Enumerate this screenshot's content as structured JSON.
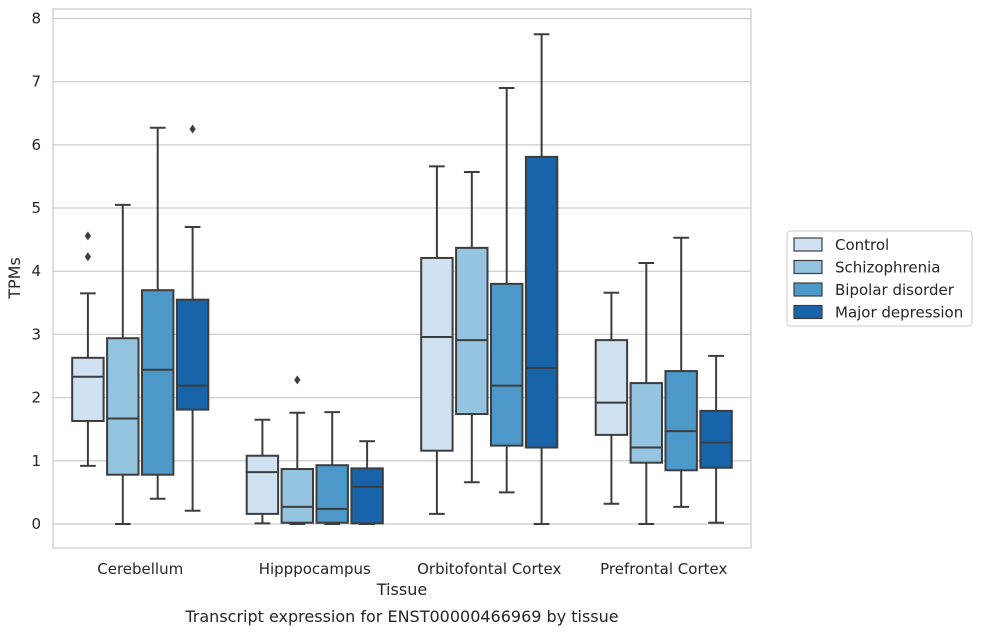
{
  "chart_data": {
    "type": "box",
    "xlabel": "Tissue",
    "ylabel": "TPMs",
    "caption": "Transcript expression for ENST00000466969 by tissue",
    "ylim": [
      -0.38,
      8.15
    ],
    "yticks": [
      0,
      1,
      2,
      3,
      4,
      5,
      6,
      7,
      8
    ],
    "grid": "horizontal",
    "legend_position": "right",
    "categories": [
      "Cerebellum",
      "Hipppocampus",
      "Orbitofontal Cortex",
      "Prefrontal Cortex"
    ],
    "series": [
      {
        "name": "Control",
        "color": "#d0e1f2",
        "boxes": [
          {
            "whislo": 0.92,
            "q1": 1.63,
            "med": 2.33,
            "q3": 2.63,
            "whishi": 3.65,
            "fliers": [
              4.23,
              4.56
            ]
          },
          {
            "whislo": 0.01,
            "q1": 0.16,
            "med": 0.82,
            "q3": 1.08,
            "whishi": 1.65,
            "fliers": []
          },
          {
            "whislo": 0.16,
            "q1": 1.16,
            "med": 2.96,
            "q3": 4.21,
            "whishi": 5.66,
            "fliers": []
          },
          {
            "whislo": 0.32,
            "q1": 1.41,
            "med": 1.92,
            "q3": 2.91,
            "whishi": 3.66,
            "fliers": []
          }
        ]
      },
      {
        "name": "Schizophrenia",
        "color": "#94c4df",
        "boxes": [
          {
            "whislo": 0.0,
            "q1": 0.78,
            "med": 1.67,
            "q3": 2.94,
            "whishi": 5.05,
            "fliers": []
          },
          {
            "whislo": 0.0,
            "q1": 0.02,
            "med": 0.27,
            "q3": 0.87,
            "whishi": 1.76,
            "fliers": [
              2.28
            ]
          },
          {
            "whislo": 0.66,
            "q1": 1.74,
            "med": 2.91,
            "q3": 4.37,
            "whishi": 5.57,
            "fliers": []
          },
          {
            "whislo": 0.0,
            "q1": 0.97,
            "med": 1.21,
            "q3": 2.23,
            "whishi": 4.13,
            "fliers": []
          }
        ]
      },
      {
        "name": "Bipolar disorder",
        "color": "#4b98c9",
        "boxes": [
          {
            "whislo": 0.4,
            "q1": 0.78,
            "med": 2.44,
            "q3": 3.7,
            "whishi": 6.27,
            "fliers": []
          },
          {
            "whislo": 0.0,
            "q1": 0.02,
            "med": 0.24,
            "q3": 0.93,
            "whishi": 1.77,
            "fliers": []
          },
          {
            "whislo": 0.5,
            "q1": 1.24,
            "med": 2.19,
            "q3": 3.8,
            "whishi": 6.9,
            "fliers": []
          },
          {
            "whislo": 0.27,
            "q1": 0.85,
            "med": 1.47,
            "q3": 2.42,
            "whishi": 4.53,
            "fliers": []
          }
        ]
      },
      {
        "name": "Major depression",
        "color": "#1764ab",
        "boxes": [
          {
            "whislo": 0.21,
            "q1": 1.81,
            "med": 2.19,
            "q3": 3.55,
            "whishi": 4.7,
            "fliers": [
              6.25
            ]
          },
          {
            "whislo": 0.0,
            "q1": 0.01,
            "med": 0.59,
            "q3": 0.88,
            "whishi": 1.31,
            "fliers": []
          },
          {
            "whislo": 0.0,
            "q1": 1.21,
            "med": 2.47,
            "q3": 5.81,
            "whishi": 7.75,
            "fliers": []
          },
          {
            "whislo": 0.02,
            "q1": 0.89,
            "med": 1.29,
            "q3": 1.79,
            "whishi": 2.66,
            "fliers": []
          }
        ]
      }
    ]
  }
}
